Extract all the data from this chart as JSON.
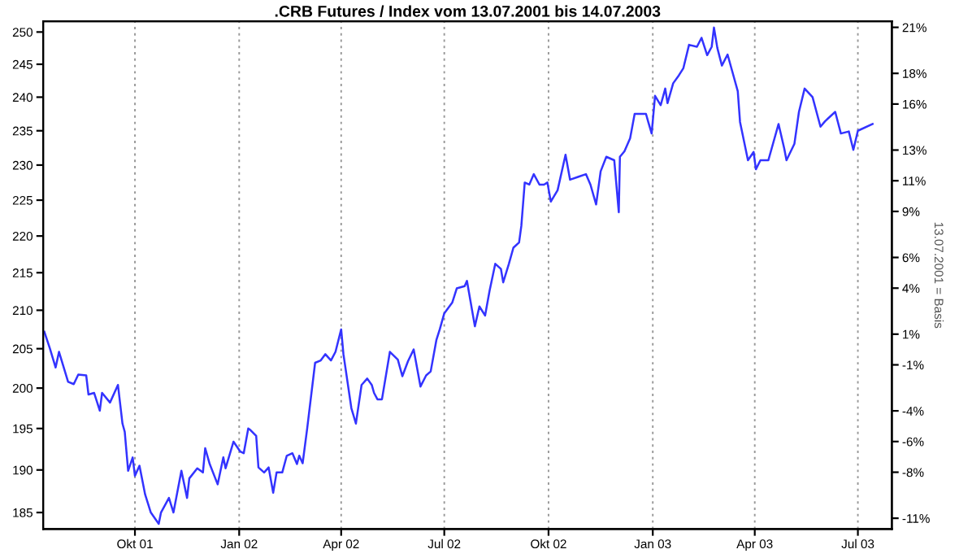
{
  "chart_data": {
    "type": "line",
    "title": ".CRB Futures / Index vom 13.07.2001 bis 14.07.2003",
    "y2label": "13.07.2001 = Basis",
    "x": [
      "2001-07-13",
      "2001-07-18",
      "2001-07-23",
      "2001-07-26",
      "2001-08-03",
      "2001-08-08",
      "2001-08-12",
      "2001-08-19",
      "2001-08-21",
      "2001-08-26",
      "2001-08-31",
      "2001-09-02",
      "2001-09-09",
      "2001-09-16",
      "2001-09-20",
      "2001-09-22",
      "2001-09-25",
      "2001-09-29",
      "2001-10-01",
      "2001-10-05",
      "2001-10-10",
      "2001-10-15",
      "2001-10-22",
      "2001-10-24",
      "2001-10-31",
      "2001-11-04",
      "2001-11-11",
      "2001-11-16",
      "2001-11-18",
      "2001-11-25",
      "2001-11-30",
      "2001-12-02",
      "2001-12-06",
      "2001-12-13",
      "2001-12-18",
      "2001-12-20",
      "2001-12-27",
      "2002-01-02",
      "2002-01-05",
      "2002-01-09",
      "2002-01-11",
      "2002-01-16",
      "2002-01-18",
      "2002-01-23",
      "2002-01-27",
      "2002-01-31",
      "2002-02-03",
      "2002-02-08",
      "2002-02-12",
      "2002-02-17",
      "2002-02-21",
      "2002-02-23",
      "2002-02-26",
      "2002-03-02",
      "2002-03-09",
      "2002-03-14",
      "2002-03-18",
      "2002-03-23",
      "2002-03-27",
      "2002-04-01",
      "2002-04-03",
      "2002-04-10",
      "2002-04-14",
      "2002-04-19",
      "2002-04-24",
      "2002-04-28",
      "2002-04-30",
      "2002-05-03",
      "2002-05-07",
      "2002-05-14",
      "2002-05-21",
      "2002-05-25",
      "2002-05-30",
      "2002-06-04",
      "2002-06-10",
      "2002-06-15",
      "2002-06-19",
      "2002-06-24",
      "2002-06-27",
      "2002-07-01",
      "2002-07-08",
      "2002-07-12",
      "2002-07-19",
      "2002-07-21",
      "2002-07-28",
      "2002-08-01",
      "2002-08-06",
      "2002-08-10",
      "2002-08-15",
      "2002-08-20",
      "2002-08-22",
      "2002-08-27",
      "2002-08-31",
      "2002-09-05",
      "2002-09-07",
      "2002-09-10",
      "2002-09-14",
      "2002-09-18",
      "2002-09-23",
      "2002-09-27",
      "2002-09-30",
      "2002-10-03",
      "2002-10-09",
      "2002-10-16",
      "2002-10-20",
      "2002-10-27",
      "2002-11-03",
      "2002-11-07",
      "2002-11-12",
      "2002-11-16",
      "2002-11-21",
      "2002-11-28",
      "2002-12-02",
      "2002-12-03",
      "2002-12-07",
      "2002-12-12",
      "2002-12-16",
      "2002-12-26",
      "2002-12-28",
      "2002-12-31",
      "2003-01-03",
      "2003-01-08",
      "2003-01-12",
      "2003-01-14",
      "2003-01-19",
      "2003-01-24",
      "2003-01-28",
      "2003-02-02",
      "2003-02-09",
      "2003-02-13",
      "2003-02-18",
      "2003-02-22",
      "2003-02-24",
      "2003-02-27",
      "2003-03-03",
      "2003-03-08",
      "2003-03-12",
      "2003-03-17",
      "2003-03-19",
      "2003-03-26",
      "2003-03-31",
      "2003-04-02",
      "2003-04-06",
      "2003-04-13",
      "2003-04-22",
      "2003-04-27",
      "2003-04-29",
      "2003-05-06",
      "2003-05-10",
      "2003-05-15",
      "2003-05-22",
      "2003-05-29",
      "2003-06-02",
      "2003-06-11",
      "2003-06-16",
      "2003-06-23",
      "2003-06-27",
      "2003-07-01",
      "2003-07-14"
    ],
    "series": [
      {
        "color": "#3333ff",
        "values": [
          207.2,
          205,
          202.6,
          204.6,
          200.8,
          200.5,
          201.7,
          201.6,
          199.2,
          199.4,
          197.2,
          199.4,
          198.2,
          200.4,
          195.6,
          194.6,
          189.9,
          191.5,
          189.3,
          190.5,
          187.1,
          185,
          183.7,
          185,
          186.7,
          185,
          189.9,
          186.7,
          189,
          190.2,
          189.7,
          192.6,
          190.7,
          188.3,
          191.5,
          190.2,
          193.4,
          192.2,
          192,
          195,
          194.8,
          194.1,
          190.3,
          189.7,
          190.3,
          187.3,
          189.7,
          189.7,
          191.7,
          192,
          190.7,
          191.7,
          190.8,
          195,
          203.2,
          203.5,
          204.3,
          203.5,
          204.6,
          207.5,
          204.3,
          197.5,
          195.6,
          200.4,
          201.2,
          200.4,
          199.4,
          198.6,
          198.6,
          204.6,
          203.6,
          201.5,
          203.4,
          204.9,
          200.2,
          201.6,
          202.1,
          206.1,
          207.5,
          209.6,
          211,
          212.9,
          213.2,
          213.9,
          207.9,
          210.5,
          209.3,
          212.6,
          216.2,
          215.5,
          213.7,
          216.2,
          218.4,
          219.1,
          221.4,
          227.5,
          227.2,
          228.7,
          227.2,
          227.2,
          227.5,
          224.8,
          226.4,
          231.5,
          227.9,
          228.3,
          228.7,
          227.2,
          224.4,
          229.1,
          231.2,
          230.7,
          223.3,
          231.2,
          232,
          233.9,
          237.5,
          237.5,
          236.3,
          234.6,
          240.2,
          238.8,
          241.3,
          239.1,
          242.1,
          243.3,
          244.4,
          248,
          247.7,
          249.1,
          246.4,
          247.7,
          250.7,
          247.5,
          244.8,
          246.5,
          244,
          240.9,
          236.3,
          230.7,
          231.9,
          229.4,
          230.7,
          230.7,
          236,
          232.4,
          230.7,
          233.1,
          237.8,
          241.3,
          240,
          235.6,
          236.4,
          237.8,
          234.6,
          234.9,
          232.2,
          235,
          236
        ]
      }
    ],
    "log": true,
    "grid": "x",
    "xlim": [
      "2001-07-12",
      "2003-07-31"
    ],
    "xticks": [
      {
        "value": "2001-10-01",
        "label": "Okt 01"
      },
      {
        "value": "2002-01-01",
        "label": "Jan 02"
      },
      {
        "value": "2002-04-01",
        "label": "Apr 02"
      },
      {
        "value": "2002-07-01",
        "label": "Jul 02"
      },
      {
        "value": "2002-10-01",
        "label": "Okt 02"
      },
      {
        "value": "2003-01-01",
        "label": "Jan 03"
      },
      {
        "value": "2003-04-01",
        "label": "Apr 03"
      },
      {
        "value": "2003-07-01",
        "label": "Jul 03"
      }
    ],
    "ylim": [
      183.1,
      251.7
    ],
    "yticks": [
      185,
      190,
      195,
      200,
      205,
      210,
      215,
      220,
      225,
      230,
      235,
      240,
      245,
      250
    ],
    "y2lim": [
      -11.7,
      21.4
    ],
    "y2ticks": [
      {
        "value": -11,
        "label": "-11%"
      },
      {
        "value": -8,
        "label": "-8%"
      },
      {
        "value": -6,
        "label": "-6%"
      },
      {
        "value": -4,
        "label": "-4%"
      },
      {
        "value": -1,
        "label": "-1%"
      },
      {
        "value": 1,
        "label": "1%"
      },
      {
        "value": 4,
        "label": "4%"
      },
      {
        "value": 6,
        "label": "6%"
      },
      {
        "value": 9,
        "label": "9%"
      },
      {
        "value": 11,
        "label": "11%"
      },
      {
        "value": 13,
        "label": "13%"
      },
      {
        "value": 16,
        "label": "16%"
      },
      {
        "value": 18,
        "label": "18%"
      },
      {
        "value": 21,
        "label": "21%"
      }
    ]
  }
}
